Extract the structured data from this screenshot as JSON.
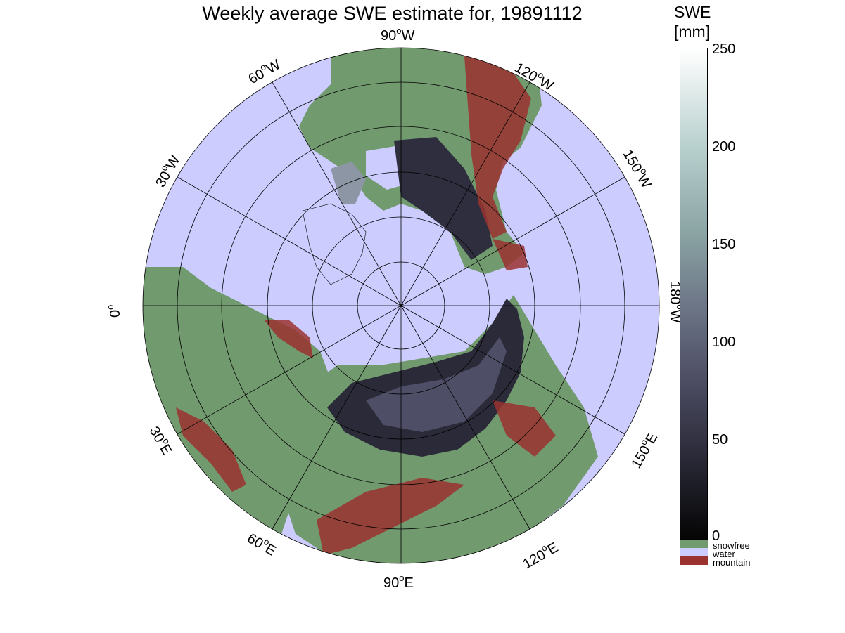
{
  "title": "Weekly average SWE estimate for, 19891112",
  "colorbar": {
    "title_line1": "SWE",
    "title_line2": "[mm]",
    "ticks": [
      "250",
      "200",
      "150",
      "100",
      "50",
      "0"
    ],
    "range": [
      0,
      250
    ]
  },
  "legend": [
    {
      "label": "snowfree",
      "color": "#729a6f"
    },
    {
      "label": "water",
      "color": "#ccccff"
    },
    {
      "label": "mountain",
      "color": "#9a3230"
    }
  ],
  "longitude_labels": {
    "lon_90w": "90",
    "lon_90w_dir": "W",
    "lon_120w": "120",
    "lon_120w_dir": "W",
    "lon_150w": "150",
    "lon_150w_dir": "W",
    "lon_180w": "180",
    "lon_180w_dir": "W",
    "lon_150e": "150",
    "lon_150e_dir": "E",
    "lon_120e": "120",
    "lon_120e_dir": "E",
    "lon_90e": "90",
    "lon_90e_dir": "E",
    "lon_60e": "60",
    "lon_60e_dir": "E",
    "lon_30e": "30",
    "lon_30e_dir": "E",
    "lon_0": "0",
    "lon_30w": "30",
    "lon_30w_dir": "W",
    "lon_60w": "60",
    "lon_60w_dir": "W",
    "degree_symbol": "o"
  },
  "colors": {
    "water": "#ccccff",
    "snowfree": "#729a6f",
    "mountain": "#9a3230",
    "snow_dark": "#16161d",
    "snow_mid": "#4a4a5e",
    "snow_light": "#9aaab0"
  }
}
